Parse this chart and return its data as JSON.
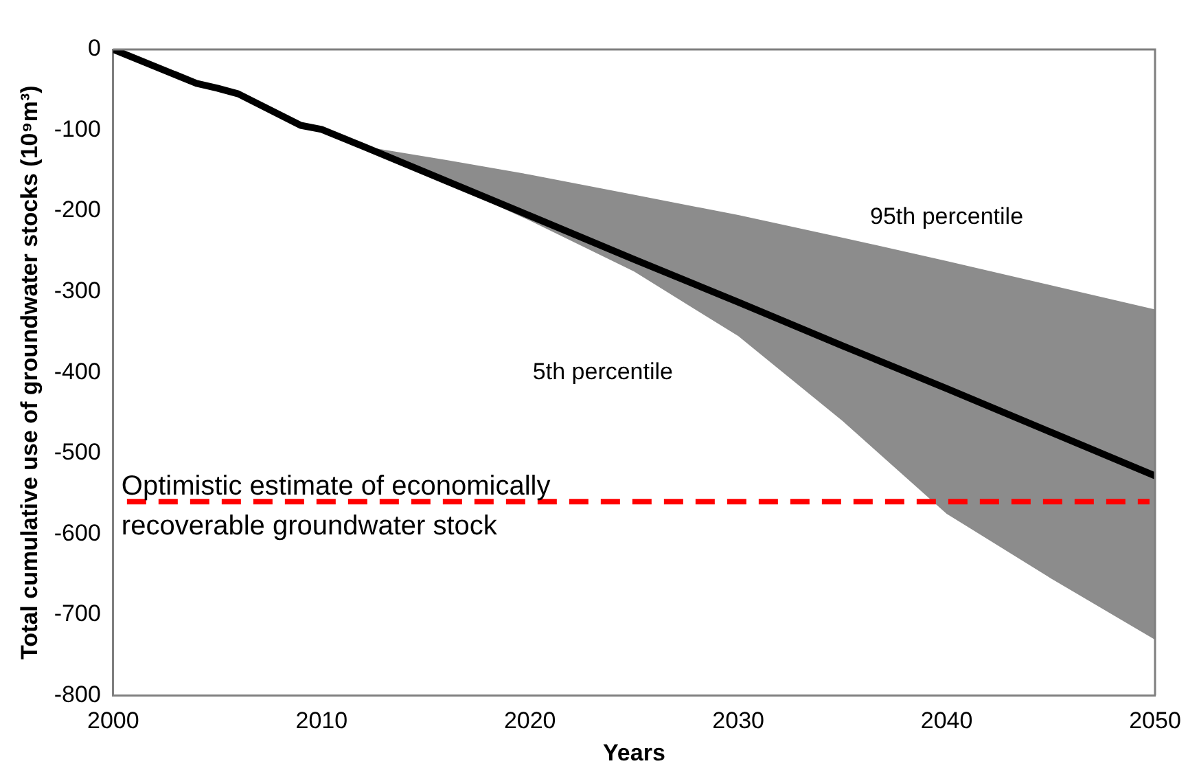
{
  "chart_data": {
    "type": "line",
    "xlabel": "Years",
    "ylabel": "Total cumulative use of groundwater stocks (10⁹m³)",
    "x": [
      2000,
      2004,
      2005,
      2006,
      2009,
      2010,
      2012,
      2016,
      2020,
      2025,
      2030,
      2035,
      2040,
      2045,
      2050
    ],
    "series": [
      {
        "color": "#000000",
        "values": [
          0,
          -42,
          -48,
          -55,
          -94,
          -99,
          -120,
          -163,
          -206,
          -260,
          -313,
          -367,
          -420,
          -474,
          -528
        ],
        "lower": [
          null,
          null,
          null,
          null,
          null,
          null,
          -120,
          -165,
          -212,
          -275,
          -355,
          -460,
          -575,
          -655,
          -731
        ],
        "upper": [
          null,
          null,
          null,
          null,
          null,
          null,
          -120,
          -137,
          -155,
          -180,
          -205,
          -233,
          -262,
          -292,
          -322
        ]
      }
    ],
    "xlim": [
      2000,
      2050
    ],
    "xticks": [
      2000,
      2010,
      2020,
      2030,
      2040,
      2050
    ],
    "ylim": [
      -800,
      0
    ],
    "yticks": [
      0,
      -100,
      -200,
      -300,
      -400,
      -500,
      -600,
      -700,
      -800
    ],
    "ref_lines": [
      {
        "axis": "y",
        "value": -560,
        "label": "Optimistic estimate of economically recoverable groundwater stock",
        "color": "#ff0000",
        "line_style": "dashed"
      }
    ],
    "annotations": [
      "95th percentile",
      "5th percentile"
    ],
    "grid": false,
    "legend": false,
    "marker": "none"
  }
}
